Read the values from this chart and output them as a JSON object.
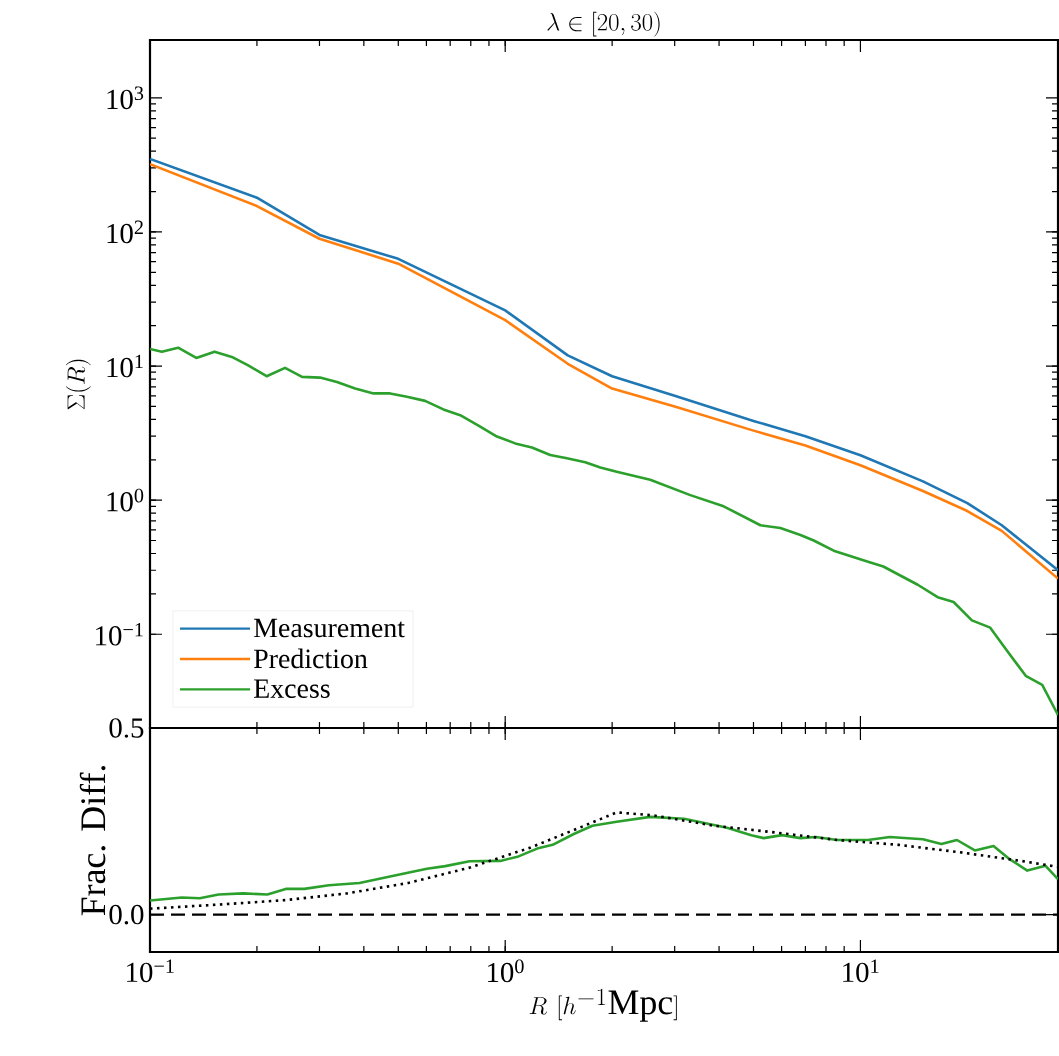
{
  "chart_data": [
    {
      "type": "line",
      "title": "\\lambda \\in [20, 30)",
      "ylabel": "\\Sigma(R)",
      "log": "xy",
      "legend": "bottom left",
      "tick_labels": "y",
      "xlim": [
        0.1,
        36
      ],
      "ylim": [
        0.02,
        2700
      ],
      "xticks": [
        0.1,
        1,
        10
      ],
      "yticks": [
        {
          "value": 0.1,
          "label": "10$^{−1}$"
        },
        {
          "value": 1,
          "label": "10$^{0}$"
        },
        {
          "value": 10,
          "label": "10$^{1}$"
        },
        {
          "value": 100,
          "label": "10$^{2}$"
        },
        {
          "value": 1000,
          "label": "10$^{3}$"
        }
      ],
      "series": [
        {
          "name": "Measurement",
          "color": "#1f77b4",
          "x": [
            0.1,
            0.2,
            0.3,
            0.5,
            1,
            1.5,
            2,
            3,
            5,
            7,
            10,
            15,
            20,
            25,
            36
          ],
          "values": [
            350,
            180,
            95,
            63,
            26,
            12,
            8.4,
            6.0,
            3.9,
            3.0,
            2.16,
            1.38,
            0.95,
            0.65,
            0.3
          ]
        },
        {
          "name": "Prediction",
          "color": "#ff7f0e",
          "x": [
            0.1,
            0.2,
            0.3,
            0.5,
            1,
            1.5,
            2,
            3,
            5,
            7,
            10,
            15,
            20,
            25,
            36
          ],
          "values": [
            320,
            156,
            89,
            58,
            22,
            10.4,
            6.8,
            5.0,
            3.3,
            2.56,
            1.82,
            1.17,
            0.83,
            0.59,
            0.26
          ]
        },
        {
          "name": "Excess",
          "color": "#2ca02c",
          "x": [
            0.1,
            0.108,
            0.12,
            0.135,
            0.152,
            0.17,
            0.189,
            0.213,
            0.24,
            0.268,
            0.301,
            0.336,
            0.378,
            0.426,
            0.474,
            0.529,
            0.595,
            0.67,
            0.747,
            0.841,
            0.948,
            1.067,
            1.189,
            1.339,
            1.492,
            1.68,
            1.853,
            2.06,
            2.56,
            3.32,
            4.12,
            5.23,
            5.95,
            6.78,
            7.39,
            8.41,
            10.4,
            11.6,
            14.5,
            16.5,
            18.3,
            20.6,
            23.2,
            25.9,
            29.2,
            32.5,
            36
          ],
          "values": [
            13.4,
            12.8,
            13.7,
            11.5,
            12.8,
            11.7,
            10.1,
            8.4,
            9.7,
            8.3,
            8.2,
            7.6,
            6.8,
            6.25,
            6.25,
            5.9,
            5.5,
            4.75,
            4.3,
            3.6,
            2.98,
            2.65,
            2.47,
            2.17,
            2.05,
            1.92,
            1.75,
            1.63,
            1.42,
            1.09,
            0.9,
            0.65,
            0.62,
            0.55,
            0.5,
            0.42,
            0.35,
            0.32,
            0.234,
            0.189,
            0.174,
            0.127,
            0.112,
            0.075,
            0.049,
            0.042,
            0.025
          ]
        }
      ]
    },
    {
      "type": "line",
      "ylabel": "Frac. Diff.",
      "xlabel": "R\\ [h^{-1}\\mathrm{Mpc}]",
      "log": "x",
      "xlim": [
        0.1,
        36
      ],
      "ylim": [
        -0.1,
        0.5
      ],
      "xticks": [
        {
          "value": 0.1,
          "label": "10$^{−1}$"
        },
        {
          "value": 1,
          "label": "10$^{0}$"
        },
        {
          "value": 10,
          "label": "10$^{1}$"
        }
      ],
      "yticks": [
        {
          "value": 0,
          "label": "0.0"
        },
        {
          "value": 0.5,
          "label": "0.5"
        }
      ],
      "ref_lines": [
        {
          "axis": "y",
          "value": 0,
          "color": "#000000",
          "line_style": "dashed"
        }
      ],
      "series": [
        {
          "color": "#2ca02c",
          "line_style": "solid",
          "x": [
            0.1,
            0.123,
            0.138,
            0.156,
            0.183,
            0.214,
            0.241,
            0.272,
            0.319,
            0.389,
            0.474,
            0.602,
            0.678,
            0.794,
            0.969,
            1.09,
            1.23,
            1.36,
            1.56,
            1.76,
            2.06,
            2.56,
            3.19,
            4.21,
            4.93,
            5.34,
            6.02,
            6.78,
            7.49,
            8.6,
            10.5,
            12.1,
            15.0,
            16.9,
            18.7,
            21.0,
            23.7,
            26.1,
            29.5,
            33.2,
            36
          ],
          "values": [
            0.038,
            0.046,
            0.044,
            0.054,
            0.057,
            0.054,
            0.069,
            0.069,
            0.079,
            0.085,
            0.102,
            0.123,
            0.13,
            0.143,
            0.144,
            0.156,
            0.177,
            0.187,
            0.216,
            0.238,
            0.249,
            0.262,
            0.257,
            0.233,
            0.213,
            0.205,
            0.213,
            0.205,
            0.208,
            0.2,
            0.2,
            0.208,
            0.202,
            0.189,
            0.2,
            0.172,
            0.184,
            0.151,
            0.118,
            0.131,
            0.095
          ]
        },
        {
          "color": "#000000",
          "line_style": "dotted",
          "x": [
            0.1,
            0.162,
            0.241,
            0.359,
            0.534,
            0.794,
            1.18,
            1.62,
            2.06,
            2.61,
            3.89,
            5.78,
            8.6,
            12.8,
            19.1,
            28.3,
            36
          ],
          "values": [
            0.016,
            0.028,
            0.039,
            0.057,
            0.085,
            0.126,
            0.18,
            0.233,
            0.274,
            0.266,
            0.238,
            0.22,
            0.2,
            0.187,
            0.167,
            0.144,
            0.128
          ]
        }
      ]
    }
  ]
}
